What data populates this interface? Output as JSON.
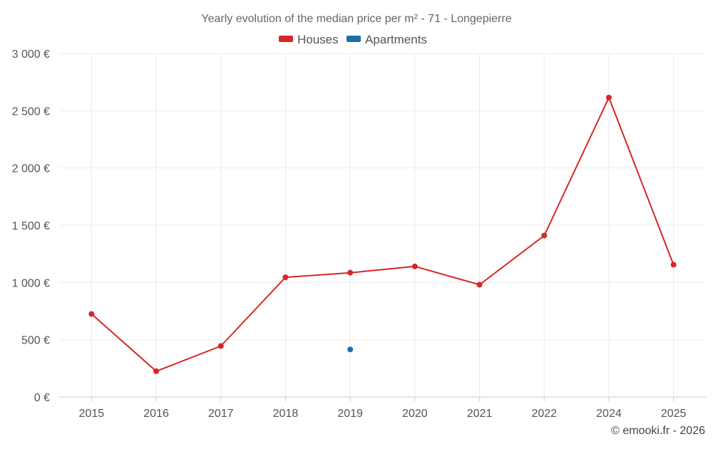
{
  "chart_data": {
    "type": "line",
    "title": "Yearly evolution of the median price per m² - 71 - Longepierre",
    "categories": [
      "2015",
      "2016",
      "2017",
      "2018",
      "2019",
      "2020",
      "2021",
      "2022",
      "2024",
      "2025"
    ],
    "series": [
      {
        "name": "Houses",
        "color": "#d62728",
        "values": [
          725,
          225,
          445,
          1045,
          1085,
          1140,
          980,
          1410,
          2615,
          1155
        ]
      },
      {
        "name": "Apartments",
        "color": "#1f6fa8",
        "values": [
          null,
          null,
          null,
          null,
          415,
          null,
          null,
          null,
          null,
          null
        ]
      }
    ],
    "y_ticks": [
      0,
      500,
      1000,
      1500,
      2000,
      2500,
      3000
    ],
    "y_tick_labels": [
      "0 €",
      "500 €",
      "1 000 €",
      "1 500 €",
      "2 000 €",
      "2 500 €",
      "3 000 €"
    ],
    "ylim": [
      0,
      3000
    ],
    "xlabel": "",
    "ylabel": "",
    "grid": true,
    "legend_position": "top-center",
    "credit": "© emooki.fr - 2026"
  }
}
